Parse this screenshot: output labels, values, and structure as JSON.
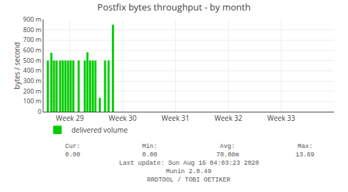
{
  "chart_data": {
    "type": "bar",
    "title": "Postfix bytes throughput - by month",
    "ylabel": "bytes / second",
    "x": [
      10,
      18,
      24,
      30,
      38,
      44,
      50,
      56,
      62,
      68,
      80,
      94,
      100,
      106,
      112,
      118,
      128,
      140,
      148,
      158
    ],
    "series": [
      {
        "name": "delivered volume",
        "color": "#00cc00",
        "values": [
          500,
          575,
          500,
          500,
          500,
          500,
          500,
          500,
          500,
          500,
          500,
          500,
          580,
          500,
          500,
          500,
          135,
          500,
          500,
          850
        ]
      }
    ],
    "xlim": [
      0,
      660
    ],
    "xticks": [
      {
        "value": 60,
        "label": "Week 29"
      },
      {
        "value": 180,
        "label": "Week 30"
      },
      {
        "value": 300,
        "label": "Week 31"
      },
      {
        "value": 420,
        "label": "Week 32"
      },
      {
        "value": 540,
        "label": "Week 33"
      }
    ],
    "ylim": [
      0,
      900
    ],
    "yticks": [
      0,
      {
        "value": 100,
        "label": "100 m"
      },
      {
        "value": 200,
        "label": "200 m"
      },
      {
        "value": 300,
        "label": "300 m"
      },
      {
        "value": 400,
        "label": "400 m"
      },
      {
        "value": 500,
        "label": "500 m"
      },
      {
        "value": 600,
        "label": "600 m"
      },
      {
        "value": 700,
        "label": "700 m"
      },
      {
        "value": 800,
        "label": "800 m"
      },
      {
        "value": 900,
        "label": "900 m"
      }
    ],
    "grid": true,
    "legend": "lower left",
    "annotations": [
      [
        "Cur:",
        "Min:",
        "Avg:",
        "Max:"
      ],
      [
        "0.00",
        "0.00",
        "70.08m",
        "13.69"
      ],
      [
        "Last update: Sun Aug 16 04:03:23 2020"
      ],
      [
        "Munin 2.0.49"
      ],
      [
        "RRDTOOL / TOBI OETIKER"
      ]
    ]
  }
}
